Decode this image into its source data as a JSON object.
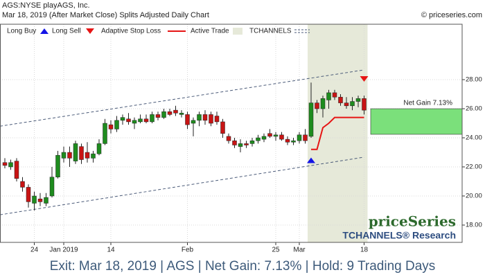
{
  "chart_data": {
    "type": "candlestick",
    "title": "AGS:NYSE playAGS, Inc.",
    "subtitle": "Mar 18, 2019 (After Market Close)  Splits Adjusted Daily Chart",
    "source": "© priceseries.com",
    "watermark": "priceSeries",
    "watermark_sub": "TCHANNELS® Research",
    "footer": "Exit: Mar 18, 2019 | AGS | Net Gain: 7.13% | Hold: 9 Trading Days",
    "categories": [
      null,
      null,
      null,
      null,
      null,
      "24",
      null,
      null,
      null,
      null,
      "Jan 2019",
      null,
      null,
      null,
      null,
      null,
      null,
      null,
      "14",
      null,
      null,
      null,
      null,
      null,
      null,
      null,
      null,
      null,
      null,
      null,
      null,
      "Feb",
      null,
      null,
      null,
      null,
      null,
      null,
      null,
      null,
      null,
      null,
      null,
      null,
      null,
      null,
      "25",
      null,
      null,
      null,
      "Mar",
      null,
      null,
      null,
      null,
      null,
      null,
      null,
      null,
      null,
      null,
      "18"
    ],
    "open": [
      22.3,
      22.0,
      22.4,
      21.0,
      20.6,
      19.5,
      19.8,
      19.5,
      20.0,
      21.3,
      22.6,
      23.0,
      22.4,
      23.4,
      23.0,
      22.6,
      22.9,
      23.6,
      24.9,
      24.6,
      25.2,
      25.3,
      25.0,
      25.1,
      25.3,
      25.1,
      25.6,
      25.4,
      25.8,
      25.9,
      25.6,
      25.6,
      25.0,
      25.2,
      25.6,
      25.6,
      25.5,
      25.1,
      24.1,
      23.8,
      23.4,
      23.6,
      23.6,
      23.8,
      23.9,
      24.3,
      24.1,
      24.2,
      23.9,
      23.7,
      23.8,
      24.2,
      24.1,
      26.4,
      26.0,
      26.6,
      27.1,
      26.8,
      26.4,
      26.2,
      26.5,
      26.7
    ],
    "high": [
      22.6,
      22.5,
      22.6,
      21.3,
      20.8,
      20.3,
      20.2,
      20.2,
      22.0,
      23.1,
      23.4,
      23.4,
      23.8,
      23.6,
      23.7,
      23.1,
      23.9,
      25.3,
      25.2,
      25.5,
      25.6,
      25.7,
      25.4,
      25.6,
      25.6,
      25.8,
      25.8,
      26.0,
      26.0,
      26.2,
      25.9,
      25.8,
      25.4,
      25.8,
      25.9,
      25.8,
      25.8,
      25.3,
      24.3,
      24.0,
      23.9,
      23.8,
      24.0,
      24.2,
      24.3,
      24.6,
      24.4,
      24.4,
      24.1,
      24.0,
      24.4,
      24.6,
      27.8,
      26.6,
      26.9,
      27.3,
      27.3,
      27.0,
      26.8,
      26.8,
      26.9,
      26.9
    ],
    "low": [
      21.9,
      21.8,
      21.0,
      20.3,
      19.2,
      19.0,
      19.3,
      19.3,
      19.9,
      21.2,
      22.3,
      22.0,
      22.2,
      22.2,
      22.3,
      22.3,
      22.8,
      23.5,
      24.3,
      24.4,
      24.9,
      24.9,
      24.6,
      25.0,
      25.0,
      25.0,
      25.2,
      25.3,
      25.5,
      25.5,
      25.4,
      24.6,
      24.1,
      24.8,
      24.9,
      24.8,
      24.9,
      24.0,
      23.6,
      23.3,
      23.0,
      23.3,
      23.4,
      23.6,
      23.7,
      24.0,
      23.8,
      23.8,
      23.5,
      23.5,
      23.6,
      23.6,
      24.0,
      25.7,
      25.4,
      26.0,
      26.6,
      26.2,
      26.0,
      25.9,
      26.1,
      25.6
    ],
    "close": [
      22.1,
      22.3,
      21.2,
      20.6,
      19.6,
      20.0,
      19.6,
      19.9,
      21.3,
      22.8,
      23.0,
      22.6,
      23.6,
      22.5,
      22.6,
      22.9,
      23.6,
      25.0,
      24.6,
      25.2,
      25.4,
      25.1,
      25.2,
      25.3,
      25.1,
      25.6,
      25.4,
      25.8,
      25.6,
      25.7,
      25.7,
      24.9,
      25.2,
      25.6,
      25.2,
      25.0,
      25.1,
      24.3,
      23.8,
      23.5,
      23.6,
      23.5,
      23.8,
      24.0,
      24.1,
      24.1,
      24.2,
      23.9,
      23.7,
      23.8,
      24.2,
      23.8,
      26.4,
      26.0,
      26.7,
      27.1,
      26.8,
      26.4,
      26.2,
      26.5,
      26.7,
      25.9
    ],
    "up_color": "#1e8c1e",
    "down_color": "#c81414",
    "long_buy": {
      "name": "Long Buy",
      "color": "#1414e6",
      "values": [
        null,
        null,
        null,
        null,
        null,
        null,
        null,
        null,
        null,
        null,
        null,
        null,
        null,
        null,
        null,
        null,
        null,
        null,
        null,
        null,
        null,
        null,
        null,
        null,
        null,
        null,
        null,
        null,
        null,
        null,
        null,
        null,
        null,
        null,
        null,
        null,
        null,
        null,
        null,
        null,
        null,
        null,
        null,
        null,
        null,
        null,
        null,
        null,
        null,
        null,
        null,
        null,
        22.45,
        null,
        null,
        null,
        null,
        null,
        null,
        null,
        null,
        null
      ]
    },
    "long_sell": {
      "name": "Long Sell",
      "color": "#e61414",
      "values": [
        null,
        null,
        null,
        null,
        null,
        null,
        null,
        null,
        null,
        null,
        null,
        null,
        null,
        null,
        null,
        null,
        null,
        null,
        null,
        null,
        null,
        null,
        null,
        null,
        null,
        null,
        null,
        null,
        null,
        null,
        null,
        null,
        null,
        null,
        null,
        null,
        null,
        null,
        null,
        null,
        null,
        null,
        null,
        null,
        null,
        null,
        null,
        null,
        null,
        null,
        null,
        null,
        null,
        null,
        null,
        null,
        null,
        null,
        null,
        null,
        null,
        28.05
      ]
    },
    "stop_loss": {
      "name": "Adaptive Stop Loss",
      "color": "#e61414",
      "values": [
        null,
        null,
        null,
        null,
        null,
        null,
        null,
        null,
        null,
        null,
        null,
        null,
        null,
        null,
        null,
        null,
        null,
        null,
        null,
        null,
        null,
        null,
        null,
        null,
        null,
        null,
        null,
        null,
        null,
        null,
        null,
        null,
        null,
        null,
        null,
        null,
        null,
        null,
        null,
        null,
        null,
        null,
        null,
        null,
        null,
        null,
        null,
        null,
        null,
        null,
        null,
        null,
        23.2,
        23.2,
        24.7,
        25.0,
        25.4,
        25.4,
        25.4,
        25.4,
        25.4,
        25.4
      ]
    },
    "active_trade": {
      "name": "Active Trade",
      "color": "#e6e9d9"
    },
    "channels": {
      "name": "TCHANNELS",
      "color": "#4a5a78",
      "upper": [
        24.85,
        28.67
      ],
      "lower": [
        18.76,
        22.67
      ]
    },
    "net_gain": {
      "label": "Net Gain 7.13%",
      "color": "#7be07b",
      "range": [
        24.24,
        26.0
      ]
    },
    "ylim": [
      16.81,
      31.81
    ],
    "yticks": [
      {
        "value": 18,
        "label": "18.00"
      },
      {
        "value": 20,
        "label": "20.00"
      },
      {
        "value": 22,
        "label": "22.00"
      },
      {
        "value": 24,
        "label": "24.00"
      },
      {
        "value": 26,
        "label": "26.00"
      },
      {
        "value": 28,
        "label": "28.00"
      }
    ],
    "grid": true
  }
}
